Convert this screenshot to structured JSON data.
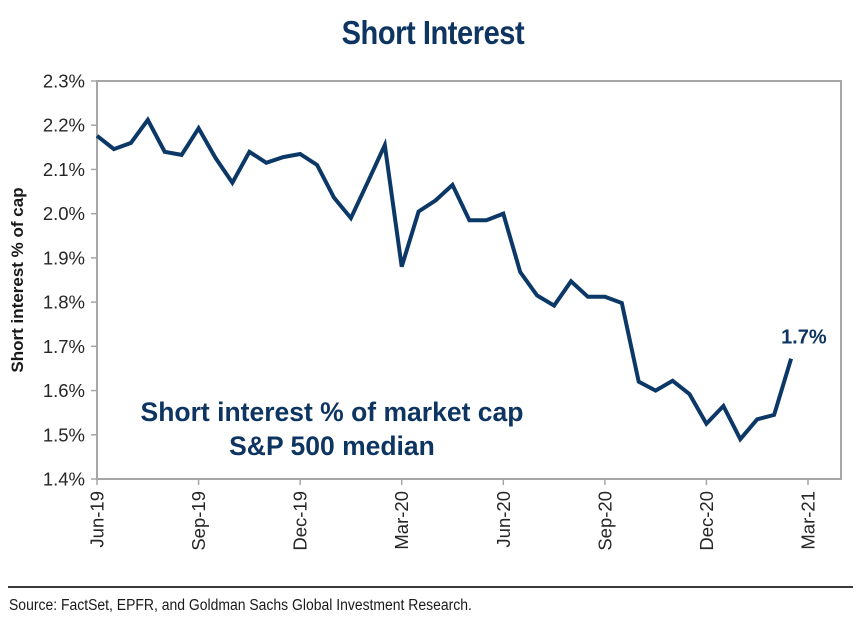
{
  "chart_data": {
    "type": "line",
    "title": "Short Interest",
    "xlabel": "",
    "ylabel": "Short interest % of cap",
    "x_unit": "months since Jun-19 (semi-monthly observations)",
    "x_ticks": [
      {
        "label": "Jun-19",
        "value": 0
      },
      {
        "label": "Sep-19",
        "value": 3
      },
      {
        "label": "Dec-19",
        "value": 6
      },
      {
        "label": "Mar-20",
        "value": 9
      },
      {
        "label": "Jun-20",
        "value": 12
      },
      {
        "label": "Sep-20",
        "value": 15
      },
      {
        "label": "Dec-20",
        "value": 18
      },
      {
        "label": "Mar-21",
        "value": 21
      }
    ],
    "xlim": [
      0,
      22
    ],
    "ylim": [
      1.4,
      2.3
    ],
    "y_ticks": [
      {
        "label": "1.4%",
        "value": 1.4
      },
      {
        "label": "1.5%",
        "value": 1.5
      },
      {
        "label": "1.6%",
        "value": 1.6
      },
      {
        "label": "1.7%",
        "value": 1.7
      },
      {
        "label": "1.8%",
        "value": 1.8
      },
      {
        "label": "1.9%",
        "value": 1.9
      },
      {
        "label": "2.0%",
        "value": 2.0
      },
      {
        "label": "2.1%",
        "value": 2.1
      },
      {
        "label": "2.2%",
        "value": 2.2
      },
      {
        "label": "2.3%",
        "value": 2.3
      }
    ],
    "grid": false,
    "series": [
      {
        "name": "Short interest % of market cap, S&P 500 median",
        "color": "#0b3866",
        "x": [
          0,
          0.5,
          1,
          1.5,
          2,
          2.5,
          3,
          3.5,
          4,
          4.5,
          5,
          5.5,
          6,
          6.5,
          7,
          7.5,
          8,
          8.5,
          9,
          9.5,
          10,
          10.5,
          11,
          11.5,
          12,
          12.5,
          13,
          13.5,
          14,
          14.5,
          15,
          15.5,
          16,
          16.5,
          17,
          17.5,
          18,
          18.5,
          19,
          19.5,
          20,
          20.5
        ],
        "values": [
          2.176,
          2.146,
          2.16,
          2.212,
          2.14,
          2.133,
          2.193,
          2.126,
          2.07,
          2.14,
          2.115,
          2.128,
          2.135,
          2.11,
          2.036,
          1.99,
          2.072,
          2.155,
          1.88,
          2.005,
          2.03,
          2.065,
          1.985,
          1.985,
          2.0,
          1.868,
          1.815,
          1.792,
          1.847,
          1.812,
          1.812,
          1.798,
          1.62,
          1.6,
          1.622,
          1.592,
          1.525,
          1.565,
          1.49,
          1.535,
          1.545,
          1.672
        ]
      }
    ],
    "annotations": [
      {
        "text": "1.7%",
        "attached_to": "last-point"
      },
      {
        "text": "Short interest % of market cap",
        "position": "lower-left"
      },
      {
        "text": "S&P 500 median",
        "position": "lower-left"
      }
    ]
  },
  "footer": {
    "source": "Source: FactSet, EPFR, and Goldman Sachs Global Investment Research."
  },
  "colors": {
    "title": "#0e3561",
    "line": "#0b3866",
    "axis": "#a6a6a6",
    "text": "#262626"
  }
}
